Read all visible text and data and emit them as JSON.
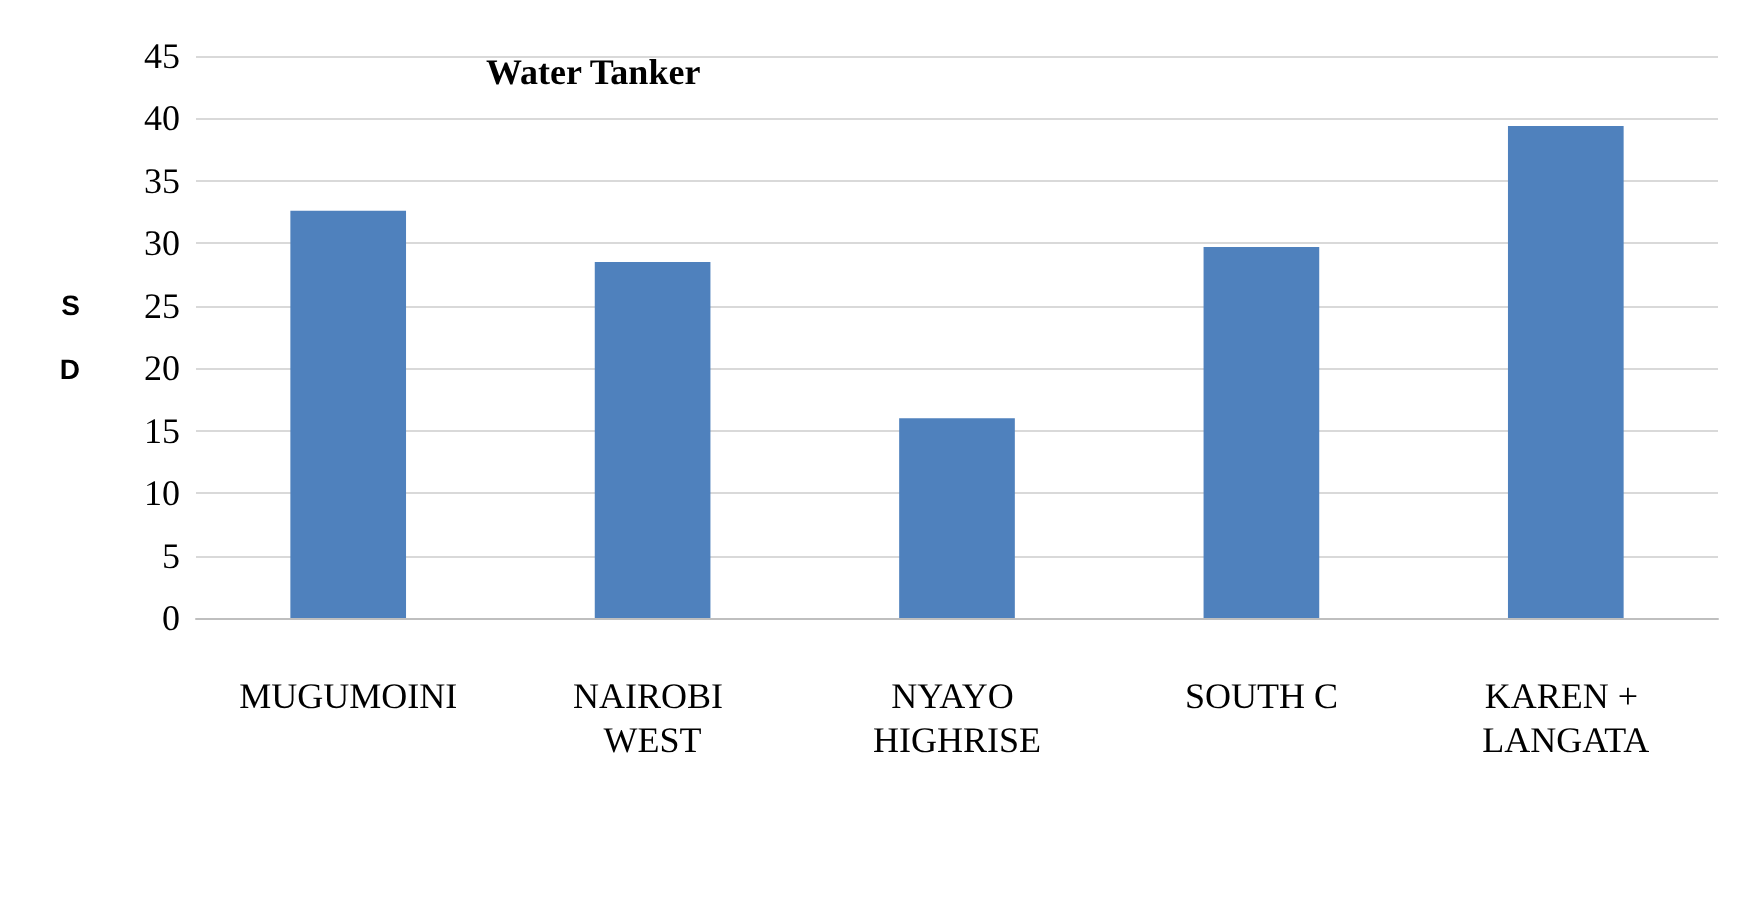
{
  "chart_data": {
    "type": "bar",
    "title": "Water Tanker",
    "ylabel": "SD",
    "categories": [
      "MUGUMOINI",
      "NAIROBI WEST",
      "NYAYO HIGHRISE",
      "SOUTH C",
      "KAREN + LANGATA"
    ],
    "values": [
      32.6,
      28.5,
      16.0,
      29.7,
      39.4
    ],
    "color": "#4f81bd",
    "ylim": [
      0,
      45
    ],
    "yticks": [
      0,
      5,
      10,
      15,
      20,
      25,
      30,
      35,
      40,
      45
    ],
    "grid": "y"
  }
}
